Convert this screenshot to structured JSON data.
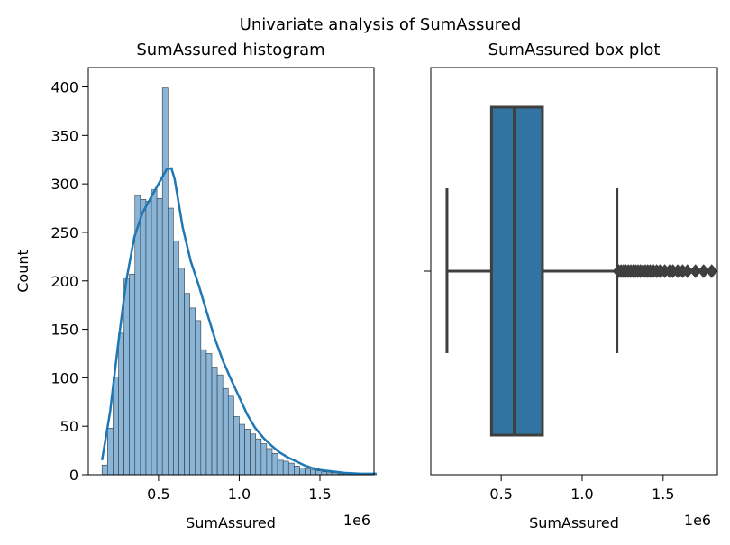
{
  "figure_title": "Univariate analysis of SumAssured",
  "chart_data": [
    {
      "type": "bar",
      "subtype": "histogram-with-kde",
      "title": "SumAssured histogram",
      "xlabel": "SumAssured",
      "ylabel": "Count",
      "x_offset_label": "1e6",
      "xlim": [
        0.065,
        1.835
      ],
      "ylim": [
        0,
        420
      ],
      "xticks": [
        0.5,
        1.0,
        1.5
      ],
      "xtick_labels": [
        "0.5",
        "1.0",
        "1.5"
      ],
      "yticks": [
        0,
        50,
        100,
        150,
        200,
        250,
        300,
        350,
        400
      ],
      "ytick_labels": [
        "0",
        "50",
        "100",
        "150",
        "200",
        "250",
        "300",
        "350",
        "400"
      ],
      "bin_edges": [
        0.15,
        0.184,
        0.218,
        0.252,
        0.286,
        0.32,
        0.354,
        0.388,
        0.422,
        0.456,
        0.49,
        0.524,
        0.558,
        0.592,
        0.626,
        0.66,
        0.694,
        0.728,
        0.762,
        0.796,
        0.83,
        0.864,
        0.898,
        0.932,
        0.966,
        1.0,
        1.034,
        1.068,
        1.102,
        1.136,
        1.17,
        1.204,
        1.238,
        1.272,
        1.306,
        1.34,
        1.374,
        1.408,
        1.442,
        1.476,
        1.51,
        1.544,
        1.578,
        1.612,
        1.646,
        1.68,
        1.714,
        1.748,
        1.782,
        1.816,
        1.85
      ],
      "counts": [
        10,
        48,
        101,
        146,
        202,
        207,
        288,
        284,
        282,
        294,
        285,
        399,
        275,
        241,
        213,
        187,
        172,
        159,
        129,
        125,
        111,
        103,
        89,
        81,
        60,
        52,
        47,
        42,
        37,
        32,
        27,
        22,
        15,
        14,
        12,
        9,
        7,
        6,
        5,
        4,
        3,
        2,
        2,
        1,
        1,
        1,
        1,
        1,
        0,
        1
      ],
      "kde": {
        "x": [
          0.15,
          0.2,
          0.25,
          0.3,
          0.35,
          0.4,
          0.45,
          0.5,
          0.55,
          0.58,
          0.6,
          0.65,
          0.7,
          0.75,
          0.8,
          0.85,
          0.9,
          0.95,
          1.0,
          1.05,
          1.1,
          1.15,
          1.2,
          1.25,
          1.3,
          1.35,
          1.4,
          1.45,
          1.5,
          1.55,
          1.6,
          1.65,
          1.7,
          1.75,
          1.8,
          1.85
        ],
        "y": [
          15,
          65,
          135,
          200,
          245,
          270,
          285,
          300,
          315,
          316,
          305,
          255,
          220,
          195,
          167,
          140,
          117,
          98,
          80,
          62,
          48,
          38,
          30,
          23,
          18,
          14,
          10,
          7,
          5,
          4,
          3,
          2,
          1.5,
          1,
          1,
          1
        ]
      },
      "colors": {
        "bar_fill": "#8bb5d6",
        "bar_edge": "#2f3b44",
        "kde_line": "#1f77b4"
      }
    },
    {
      "type": "box",
      "title": "SumAssured box plot",
      "xlabel": "SumAssured",
      "x_offset_label": "1e6",
      "xlim": [
        0.065,
        1.835
      ],
      "xticks": [
        0.5,
        1.0,
        1.5
      ],
      "xtick_labels": [
        "0.5",
        "1.0",
        "1.5"
      ],
      "stats": {
        "whisker_low": 0.165,
        "q1": 0.44,
        "median": 0.58,
        "q3": 0.755,
        "whisker_high": 1.215
      },
      "outliers": [
        1.225,
        1.24,
        1.255,
        1.27,
        1.285,
        1.3,
        1.315,
        1.33,
        1.345,
        1.36,
        1.375,
        1.39,
        1.405,
        1.42,
        1.44,
        1.46,
        1.48,
        1.51,
        1.54,
        1.56,
        1.59,
        1.62,
        1.65,
        1.7,
        1.75,
        1.8,
        1.85
      ],
      "colors": {
        "box_fill": "#3274a1",
        "line": "#3f3f3f"
      }
    }
  ]
}
